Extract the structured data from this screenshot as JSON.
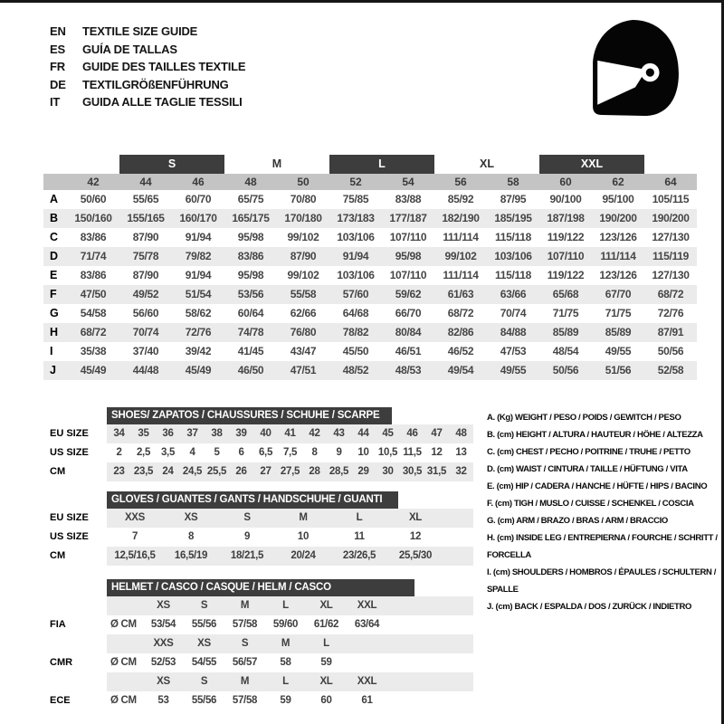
{
  "header": {
    "languages": [
      {
        "code": "EN",
        "title": "TEXTILE SIZE GUIDE"
      },
      {
        "code": "ES",
        "title": "GUÍA DE TALLAS"
      },
      {
        "code": "FR",
        "title": "GUIDE DES TAILLES TEXTILE"
      },
      {
        "code": "DE",
        "title": "TEXTILGRÖßENFÜHRUNG"
      },
      {
        "code": "IT",
        "title": "GUIDA ALLE TAGLIE TESSILI"
      }
    ],
    "helmet_icon": "racing-helmet"
  },
  "colors": {
    "dark_bar": "#3d3d3d",
    "number_band": "#c4c4c4",
    "row_stripe": "#ebebeb"
  },
  "main_table": {
    "size_groups": [
      {
        "label": "S",
        "boxed": true
      },
      {
        "label": "M",
        "boxed": false
      },
      {
        "label": "L",
        "boxed": true
      },
      {
        "label": "XL",
        "boxed": false
      },
      {
        "label": "XXL",
        "boxed": true
      }
    ],
    "columns": [
      "42",
      "44",
      "46",
      "48",
      "50",
      "52",
      "54",
      "56",
      "58",
      "60",
      "62",
      "64"
    ],
    "rows": [
      {
        "label": "A",
        "values": [
          "50/60",
          "55/65",
          "60/70",
          "65/75",
          "70/80",
          "75/85",
          "83/88",
          "85/92",
          "87/95",
          "90/100",
          "95/100",
          "105/115"
        ]
      },
      {
        "label": "B",
        "values": [
          "150/160",
          "155/165",
          "160/170",
          "165/175",
          "170/180",
          "173/183",
          "177/187",
          "182/190",
          "185/195",
          "187/198",
          "190/200",
          "190/200"
        ]
      },
      {
        "label": "C",
        "values": [
          "83/86",
          "87/90",
          "91/94",
          "95/98",
          "99/102",
          "103/106",
          "107/110",
          "111/114",
          "115/118",
          "119/122",
          "123/126",
          "127/130"
        ]
      },
      {
        "label": "D",
        "values": [
          "71/74",
          "75/78",
          "79/82",
          "83/86",
          "87/90",
          "91/94",
          "95/98",
          "99/102",
          "103/106",
          "107/110",
          "111/114",
          "115/119"
        ]
      },
      {
        "label": "E",
        "values": [
          "83/86",
          "87/90",
          "91/94",
          "95/98",
          "99/102",
          "103/106",
          "107/110",
          "111/114",
          "115/118",
          "119/122",
          "123/126",
          "127/130"
        ]
      },
      {
        "label": "F",
        "values": [
          "47/50",
          "49/52",
          "51/54",
          "53/56",
          "55/58",
          "57/60",
          "59/62",
          "61/63",
          "63/66",
          "65/68",
          "67/70",
          "68/72"
        ]
      },
      {
        "label": "G",
        "values": [
          "54/58",
          "56/60",
          "58/62",
          "60/64",
          "62/66",
          "64/68",
          "66/70",
          "68/72",
          "70/74",
          "71/75",
          "71/75",
          "72/76"
        ]
      },
      {
        "label": "H",
        "values": [
          "68/72",
          "70/74",
          "72/76",
          "74/78",
          "76/80",
          "78/82",
          "80/84",
          "82/86",
          "84/88",
          "85/89",
          "85/89",
          "87/91"
        ]
      },
      {
        "label": "I",
        "values": [
          "35/38",
          "37/40",
          "39/42",
          "41/45",
          "43/47",
          "45/50",
          "46/51",
          "46/52",
          "47/53",
          "48/54",
          "49/55",
          "50/56"
        ]
      },
      {
        "label": "J",
        "values": [
          "45/49",
          "44/48",
          "45/49",
          "46/50",
          "47/51",
          "48/52",
          "48/53",
          "49/54",
          "49/55",
          "50/56",
          "51/56",
          "52/58"
        ]
      }
    ]
  },
  "shoes_table": {
    "title": "SHOES/ ZAPATOS / CHAUSSURES / SCHUHE / SCARPE",
    "rows": [
      {
        "label": "EU SIZE",
        "values": [
          "34",
          "35",
          "36",
          "37",
          "38",
          "39",
          "40",
          "41",
          "42",
          "43",
          "44",
          "45",
          "46",
          "47",
          "48"
        ]
      },
      {
        "label": "US SIZE",
        "values": [
          "2",
          "2,5",
          "3,5",
          "4",
          "5",
          "6",
          "6,5",
          "7,5",
          "8",
          "9",
          "10",
          "10,5",
          "11,5",
          "12",
          "13"
        ]
      },
      {
        "label": "CM",
        "values": [
          "23",
          "23,5",
          "24",
          "24,5",
          "25,5",
          "26",
          "27",
          "27,5",
          "28",
          "28,5",
          "29",
          "30",
          "30,5",
          "31,5",
          "32"
        ]
      }
    ]
  },
  "gloves_table": {
    "title": "GLOVES / GUANTES / GANTS / HANDSCHUHE / GUANTI",
    "rows": [
      {
        "label": "EU SIZE",
        "values": [
          "XXS",
          "XS",
          "S",
          "M",
          "L",
          "XL"
        ]
      },
      {
        "label": "US SIZE",
        "values": [
          "7",
          "8",
          "9",
          "10",
          "11",
          "12"
        ]
      },
      {
        "label": "CM",
        "values": [
          "12,5/16,5",
          "16,5/19",
          "18/21,5",
          "20/24",
          "23/26,5",
          "25,5/30"
        ]
      }
    ]
  },
  "helmet_table": {
    "title": "HELMET / CASCO / CASQUE / HELM / CASCO",
    "diameter_label": "Ø CM",
    "groups": [
      {
        "label": "FIA",
        "sizes": [
          "XS",
          "S",
          "M",
          "L",
          "XL",
          "XXL"
        ],
        "values": [
          "53/54",
          "55/56",
          "57/58",
          "59/60",
          "61/62",
          "63/64"
        ]
      },
      {
        "label": "CMR",
        "sizes": [
          "XXS",
          "XS",
          "S",
          "M",
          "L",
          ""
        ],
        "values": [
          "52/53",
          "54/55",
          "56/57",
          "58",
          "59",
          ""
        ]
      },
      {
        "label": "ECE",
        "sizes": [
          "XS",
          "S",
          "M",
          "L",
          "XL",
          "XXL"
        ],
        "values": [
          "53",
          "55/56",
          "57/58",
          "59",
          "60",
          "61"
        ]
      }
    ]
  },
  "legend": {
    "items": [
      "A. (Kg) WEIGHT / PESO / POIDS / GEWITCH / PESO",
      "B. (cm) HEIGHT / ALTURA / HAUTEUR / HÖHE / ALTEZZA",
      "C. (cm) CHEST / PECHO / POITRINE / TRUHE / PETTO",
      "D. (cm) WAIST / CINTURA / TAILLE / HÜFTUNG / VITA",
      "E. (cm) HIP / CADERA / HANCHE / HÜFTE / HIPS / BACINO",
      "F. (cm) TIGH / MUSLO / CUISSE / SCHENKEL / COSCIA",
      "G. (cm) ARM / BRAZO / BRAS / ARM / BRACCIO",
      "H. (cm) INSIDE LEG / ENTREPIERNA / FOURCHE / SCHRITT / FORCELLA",
      "I. (cm) SHOULDERS / HOMBROS / ÉPAULES / SCHULTERN / SPALLE",
      "J. (cm) BACK / ESPALDA / DOS / ZURÜCK / INDIETRO"
    ]
  }
}
